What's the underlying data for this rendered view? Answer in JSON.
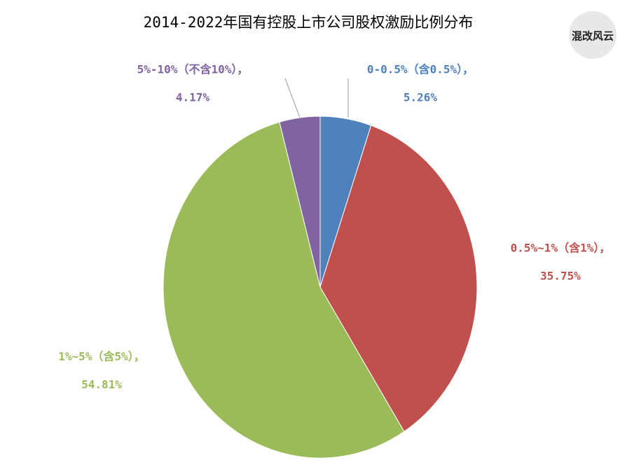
{
  "chart_data": {
    "type": "pie",
    "title": "2014-2022年国有控股上市公司股权激励比例分布",
    "categories": [
      "0-0.5%（含0.5%），",
      "0.5%~1%（含1%），",
      "1%~5%（含5%），",
      "5%-10%（不含10%），"
    ],
    "values": [
      5.26,
      35.75,
      54.81,
      4.17
    ],
    "value_labels": [
      "5.26%",
      "35.75%",
      "54.81%",
      "4.17%"
    ],
    "colors": [
      "#4f81bd",
      "#c0504d",
      "#9bbb59",
      "#8064a2"
    ],
    "logo": "混改风云"
  }
}
